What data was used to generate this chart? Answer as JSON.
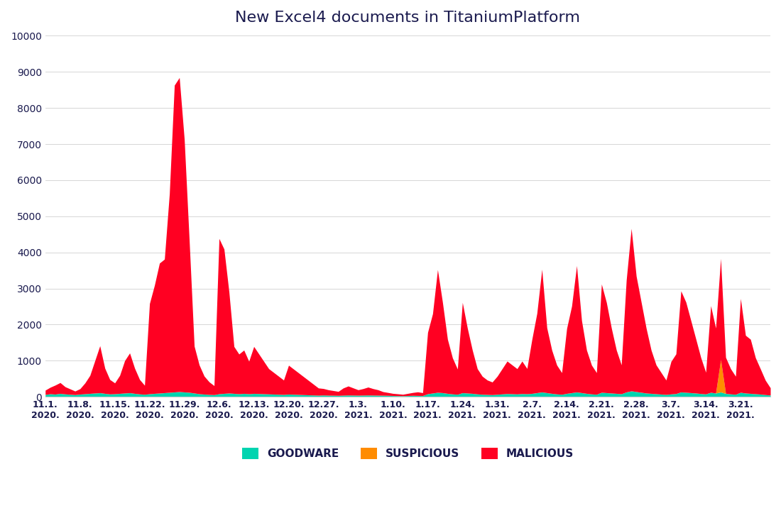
{
  "title": "New Excel4 documents in TitaniumPlatform",
  "title_color": "#1a1a4e",
  "background_color": "#ffffff",
  "legend": [
    "GOODWARE",
    "SUSPICIOUS",
    "MALICIOUS"
  ],
  "colors": {
    "goodware": "#00d4b0",
    "suspicious": "#ff8c00",
    "malicious": "#ff0022"
  },
  "xlabels": [
    "11.1.\n2020.",
    "11.8.\n2020.",
    "11.15.\n2020.",
    "11.22.\n2020.",
    "11.29.\n2020.",
    "12.6.\n2020.",
    "12.13.\n2020.",
    "12.20.\n2020.",
    "12.27.\n2020.",
    "1.3.\n2021.",
    "1.10.\n2021.",
    "1.17.\n2021.",
    "1.24.\n2021.",
    "1.31.\n2021.",
    "2.7.\n2021.",
    "2.14.\n2021.",
    "2.21.\n2021.",
    "2.28.\n2021.",
    "3.7.\n2021.",
    "3.14.\n2021.",
    "3.21.\n2021."
  ],
  "xtick_positions": [
    0,
    7,
    14,
    21,
    28,
    35,
    42,
    49,
    56,
    63,
    70,
    77,
    84,
    91,
    98,
    105,
    112,
    119,
    126,
    133,
    140
  ],
  "ylim": [
    0,
    10000
  ],
  "yticks": [
    0,
    1000,
    2000,
    3000,
    4000,
    5000,
    6000,
    7000,
    8000,
    9000,
    10000
  ],
  "n": 147,
  "malicious": [
    120,
    180,
    250,
    300,
    200,
    150,
    100,
    150,
    300,
    500,
    900,
    1300,
    700,
    400,
    300,
    500,
    900,
    1100,
    700,
    400,
    250,
    2500,
    3000,
    3600,
    3700,
    5500,
    8500,
    8700,
    7000,
    4200,
    1300,
    800,
    500,
    350,
    250,
    4300,
    4000,
    2800,
    1300,
    1100,
    1200,
    900,
    1300,
    1100,
    900,
    700,
    600,
    500,
    400,
    800,
    700,
    600,
    500,
    400,
    300,
    200,
    180,
    150,
    130,
    110,
    200,
    250,
    200,
    150,
    180,
    220,
    180,
    150,
    100,
    80,
    60,
    50,
    40,
    60,
    80,
    100,
    80,
    1700,
    2200,
    3400,
    2500,
    1500,
    1000,
    700,
    2500,
    1800,
    1200,
    700,
    500,
    400,
    350,
    500,
    700,
    900,
    800,
    700,
    900,
    700,
    1500,
    2200,
    3400,
    1800,
    1200,
    800,
    600,
    1800,
    2400,
    3500,
    2000,
    1200,
    800,
    600,
    3000,
    2500,
    1800,
    1200,
    800,
    3100,
    4500,
    3200,
    2500,
    1800,
    1200,
    800,
    600,
    400,
    900,
    1100,
    2800,
    2500,
    2000,
    1500,
    1000,
    600,
    2400,
    1800,
    2800,
    1000,
    700,
    500,
    2600,
    1600,
    1500,
    1000,
    700,
    400,
    200
  ],
  "goodware": [
    60,
    80,
    70,
    90,
    75,
    65,
    55,
    70,
    80,
    90,
    100,
    110,
    90,
    75,
    80,
    90,
    100,
    110,
    90,
    75,
    65,
    80,
    90,
    100,
    110,
    120,
    130,
    140,
    130,
    120,
    100,
    80,
    70,
    60,
    55,
    80,
    90,
    100,
    90,
    80,
    90,
    80,
    90,
    85,
    80,
    75,
    70,
    65,
    60,
    70,
    65,
    60,
    55,
    50,
    45,
    40,
    45,
    40,
    38,
    35,
    40,
    45,
    42,
    40,
    42,
    45,
    42,
    40,
    38,
    35,
    30,
    28,
    25,
    30,
    35,
    32,
    30,
    80,
    100,
    120,
    110,
    90,
    75,
    65,
    110,
    100,
    90,
    75,
    65,
    60,
    55,
    65,
    75,
    85,
    80,
    75,
    85,
    80,
    90,
    110,
    130,
    110,
    90,
    75,
    65,
    90,
    110,
    130,
    110,
    90,
    75,
    65,
    120,
    110,
    100,
    90,
    80,
    130,
    160,
    140,
    120,
    100,
    90,
    80,
    70,
    60,
    75,
    85,
    130,
    120,
    110,
    100,
    85,
    75,
    120,
    100,
    130,
    90,
    75,
    65,
    120,
    100,
    90,
    80,
    70,
    55,
    45
  ],
  "suspicious": [
    2,
    2,
    2,
    2,
    2,
    2,
    2,
    2,
    2,
    2,
    2,
    2,
    2,
    2,
    2,
    2,
    2,
    2,
    2,
    2,
    2,
    2,
    2,
    2,
    2,
    2,
    2,
    2,
    2,
    2,
    2,
    2,
    2,
    2,
    2,
    2,
    2,
    2,
    2,
    2,
    2,
    2,
    2,
    2,
    2,
    2,
    2,
    2,
    2,
    2,
    2,
    2,
    2,
    2,
    2,
    2,
    2,
    2,
    2,
    2,
    2,
    2,
    2,
    2,
    2,
    2,
    2,
    2,
    2,
    2,
    2,
    2,
    2,
    2,
    2,
    2,
    2,
    2,
    2,
    2,
    2,
    2,
    2,
    2,
    2,
    2,
    2,
    2,
    2,
    2,
    2,
    2,
    2,
    2,
    2,
    2,
    2,
    2,
    2,
    2,
    2,
    2,
    2,
    2,
    2,
    2,
    2,
    2,
    2,
    2,
    2,
    2,
    2,
    2,
    2,
    2,
    2,
    2,
    2,
    2,
    2,
    2,
    2,
    2,
    2,
    2,
    2,
    2,
    2,
    2,
    2,
    2,
    2,
    2,
    2,
    2,
    900,
    2,
    2,
    2,
    2,
    2,
    2,
    2,
    2,
    2,
    2
  ]
}
